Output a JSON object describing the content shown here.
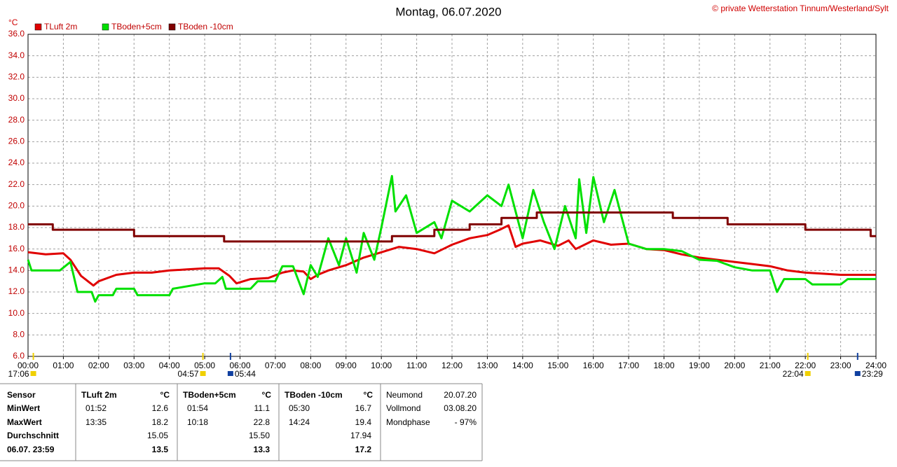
{
  "chart_data": {
    "type": "line",
    "title": "Montag, 06.07.2020",
    "copyright": "© private Wetterstation Tinnum/Westerland/Sylt",
    "ylabel": "°C",
    "xlim": [
      0,
      24
    ],
    "ylim": [
      6,
      36
    ],
    "grid": true,
    "xticks": [
      {
        "value": 0,
        "label": "00:00"
      },
      {
        "value": 1,
        "label": "01:00"
      },
      {
        "value": 2,
        "label": "02:00"
      },
      {
        "value": 3,
        "label": "03:00"
      },
      {
        "value": 4,
        "label": "04:00"
      },
      {
        "value": 5,
        "label": "05:00"
      },
      {
        "value": 6,
        "label": "06:00"
      },
      {
        "value": 7,
        "label": "07:00"
      },
      {
        "value": 8,
        "label": "08:00"
      },
      {
        "value": 9,
        "label": "09:00"
      },
      {
        "value": 10,
        "label": "10:00"
      },
      {
        "value": 11,
        "label": "11:00"
      },
      {
        "value": 12,
        "label": "12:00"
      },
      {
        "value": 13,
        "label": "13:00"
      },
      {
        "value": 14,
        "label": "14:00"
      },
      {
        "value": 15,
        "label": "15:00"
      },
      {
        "value": 16,
        "label": "16:00"
      },
      {
        "value": 17,
        "label": "17:00"
      },
      {
        "value": 18,
        "label": "18:00"
      },
      {
        "value": 19,
        "label": "19:00"
      },
      {
        "value": 20,
        "label": "20:00"
      },
      {
        "value": 21,
        "label": "21:00"
      },
      {
        "value": 22,
        "label": "22:00"
      },
      {
        "value": 23,
        "label": "23:00"
      },
      {
        "value": 24,
        "label": "24:00"
      }
    ],
    "yticks": [
      {
        "value": 6,
        "label": "6.0"
      },
      {
        "value": 8,
        "label": "8.0"
      },
      {
        "value": 10,
        "label": "10.0"
      },
      {
        "value": 12,
        "label": "12.0"
      },
      {
        "value": 14,
        "label": "14.0"
      },
      {
        "value": 16,
        "label": "16.0"
      },
      {
        "value": 18,
        "label": "18.0"
      },
      {
        "value": 20,
        "label": "20.0"
      },
      {
        "value": 22,
        "label": "22.0"
      },
      {
        "value": 24,
        "label": "24.0"
      },
      {
        "value": 26,
        "label": "26.0"
      },
      {
        "value": 28,
        "label": "28.0"
      },
      {
        "value": 30,
        "label": "30.0"
      },
      {
        "value": 32,
        "label": "32.0"
      },
      {
        "value": 34,
        "label": "34.0"
      },
      {
        "value": 36,
        "label": "36.0"
      }
    ],
    "series": [
      {
        "name": "TLuft 2m",
        "color": "#e00000",
        "x": [
          0,
          0.5,
          1,
          1.2,
          1.5,
          1.85,
          2,
          2.5,
          3,
          3.5,
          4,
          4.5,
          5,
          5.4,
          5.7,
          5.9,
          6.3,
          6.8,
          7.2,
          7.5,
          7.8,
          8,
          8.2,
          8.5,
          9,
          9.5,
          10,
          10.5,
          11,
          11.5,
          12,
          12.5,
          13,
          13.35,
          13.6,
          13.8,
          14,
          14.5,
          15,
          15.3,
          15.5,
          16,
          16.5,
          17,
          17.5,
          18,
          18.5,
          19,
          19.5,
          20,
          20.5,
          21,
          21.5,
          22,
          22.5,
          23,
          23.5,
          24
        ],
        "values": [
          15.7,
          15.5,
          15.6,
          15.0,
          13.5,
          12.6,
          13.0,
          13.6,
          13.8,
          13.8,
          14.0,
          14.1,
          14.2,
          14.2,
          13.5,
          12.8,
          13.2,
          13.3,
          13.8,
          14.0,
          13.9,
          13.2,
          13.6,
          14.0,
          14.5,
          15.2,
          15.7,
          16.2,
          16.0,
          15.6,
          16.4,
          17.0,
          17.3,
          17.8,
          18.2,
          16.2,
          16.5,
          16.8,
          16.3,
          16.8,
          16.0,
          16.8,
          16.4,
          16.5,
          16.0,
          15.9,
          15.5,
          15.2,
          15.0,
          14.8,
          14.6,
          14.4,
          14.0,
          13.8,
          13.7,
          13.6,
          13.6,
          13.6
        ]
      },
      {
        "name": "TBoden+5cm",
        "color": "#00e000",
        "x": [
          0,
          0.1,
          0.9,
          1.2,
          1.4,
          1.8,
          1.9,
          2,
          2.4,
          2.5,
          3,
          3.1,
          4,
          4.1,
          5,
          5.3,
          5.5,
          5.6,
          6.3,
          6.5,
          7,
          7.2,
          7.5,
          7.8,
          8,
          8.2,
          8.5,
          8.8,
          9,
          9.3,
          9.5,
          9.8,
          10,
          10.3,
          10.4,
          10.7,
          11,
          11.5,
          11.7,
          12,
          12.5,
          13,
          13.4,
          13.6,
          14,
          14.3,
          14.6,
          14.9,
          15.2,
          15.5,
          15.6,
          15.8,
          16,
          16.3,
          16.6,
          16.8,
          17,
          17.5,
          18,
          18.5,
          19,
          19.5,
          20,
          20.5,
          21,
          21.2,
          21.4,
          22,
          22.2,
          23,
          23.2,
          24
        ],
        "values": [
          15.0,
          14.0,
          14.0,
          14.8,
          12.0,
          12.0,
          11.1,
          11.7,
          11.7,
          12.3,
          12.3,
          11.7,
          11.7,
          12.3,
          12.8,
          12.8,
          13.4,
          12.3,
          12.3,
          13.0,
          13.0,
          14.4,
          14.4,
          11.8,
          14.5,
          13.4,
          17.0,
          14.5,
          17.0,
          13.8,
          17.5,
          15.0,
          18.0,
          22.8,
          19.5,
          21.0,
          17.5,
          18.5,
          17.0,
          20.5,
          19.5,
          21.0,
          20.0,
          22.0,
          17.0,
          21.5,
          18.5,
          16.0,
          20.0,
          17.0,
          22.5,
          17.5,
          22.7,
          18.5,
          21.5,
          19.0,
          16.5,
          16.0,
          16.0,
          15.8,
          15.0,
          14.9,
          14.3,
          14.0,
          14.0,
          12.0,
          13.2,
          13.2,
          12.7,
          12.7,
          13.2,
          13.2
        ]
      },
      {
        "name": "TBoden -10cm",
        "color": "#800000",
        "x": [
          0,
          0.7,
          0.7,
          3.0,
          3.0,
          5.55,
          5.55,
          10.3,
          10.3,
          11.5,
          11.5,
          12.5,
          12.5,
          13.4,
          13.4,
          14.4,
          14.4,
          18.25,
          18.25,
          19.8,
          19.8,
          22.0,
          22.0,
          23.85,
          23.85,
          24
        ],
        "values": [
          18.3,
          18.3,
          17.8,
          17.8,
          17.2,
          17.2,
          16.7,
          16.7,
          17.2,
          17.2,
          17.8,
          17.8,
          18.3,
          18.3,
          18.9,
          18.9,
          19.4,
          19.4,
          18.9,
          18.9,
          18.3,
          18.3,
          17.8,
          17.8,
          17.2,
          17.2
        ]
      }
    ],
    "annotations": [
      {
        "label": "17:06",
        "x": 0.15,
        "color": "#f0d000"
      },
      {
        "label": "04:57",
        "x": 4.95,
        "color": "#f0d000"
      },
      {
        "label": "05:44",
        "x": 5.73,
        "color": "#1040a0"
      },
      {
        "label": "22:04",
        "x": 22.07,
        "color": "#f0d000"
      },
      {
        "label": "23:29",
        "x": 23.48,
        "color": "#1040a0"
      }
    ]
  },
  "table": {
    "row_labels": [
      "Sensor",
      "MinWert",
      "MaxWert",
      "Durchschnitt",
      "06.07. 23:59"
    ],
    "sensors": [
      {
        "name": "TLuft 2m",
        "unit": "°C",
        "min_time": "01:52",
        "min": "12.6",
        "max_time": "13:35",
        "max": "18.2",
        "avg": "15.05",
        "current": "13.5"
      },
      {
        "name": "TBoden+5cm",
        "unit": "°C",
        "min_time": "01:54",
        "min": "11.1",
        "max_time": "10:18",
        "max": "22.8",
        "avg": "15.50",
        "current": "13.3"
      },
      {
        "name": "TBoden -10cm",
        "unit": "°C",
        "min_time": "05:30",
        "min": "16.7",
        "max_time": "14:24",
        "max": "19.4",
        "avg": "17.94",
        "current": "17.2"
      }
    ],
    "moon": [
      {
        "label": "Neumond",
        "value": "20.07.20"
      },
      {
        "label": "Vollmond",
        "value": "03.08.20"
      },
      {
        "label": "Mondphase",
        "value": "- 97%"
      }
    ]
  }
}
